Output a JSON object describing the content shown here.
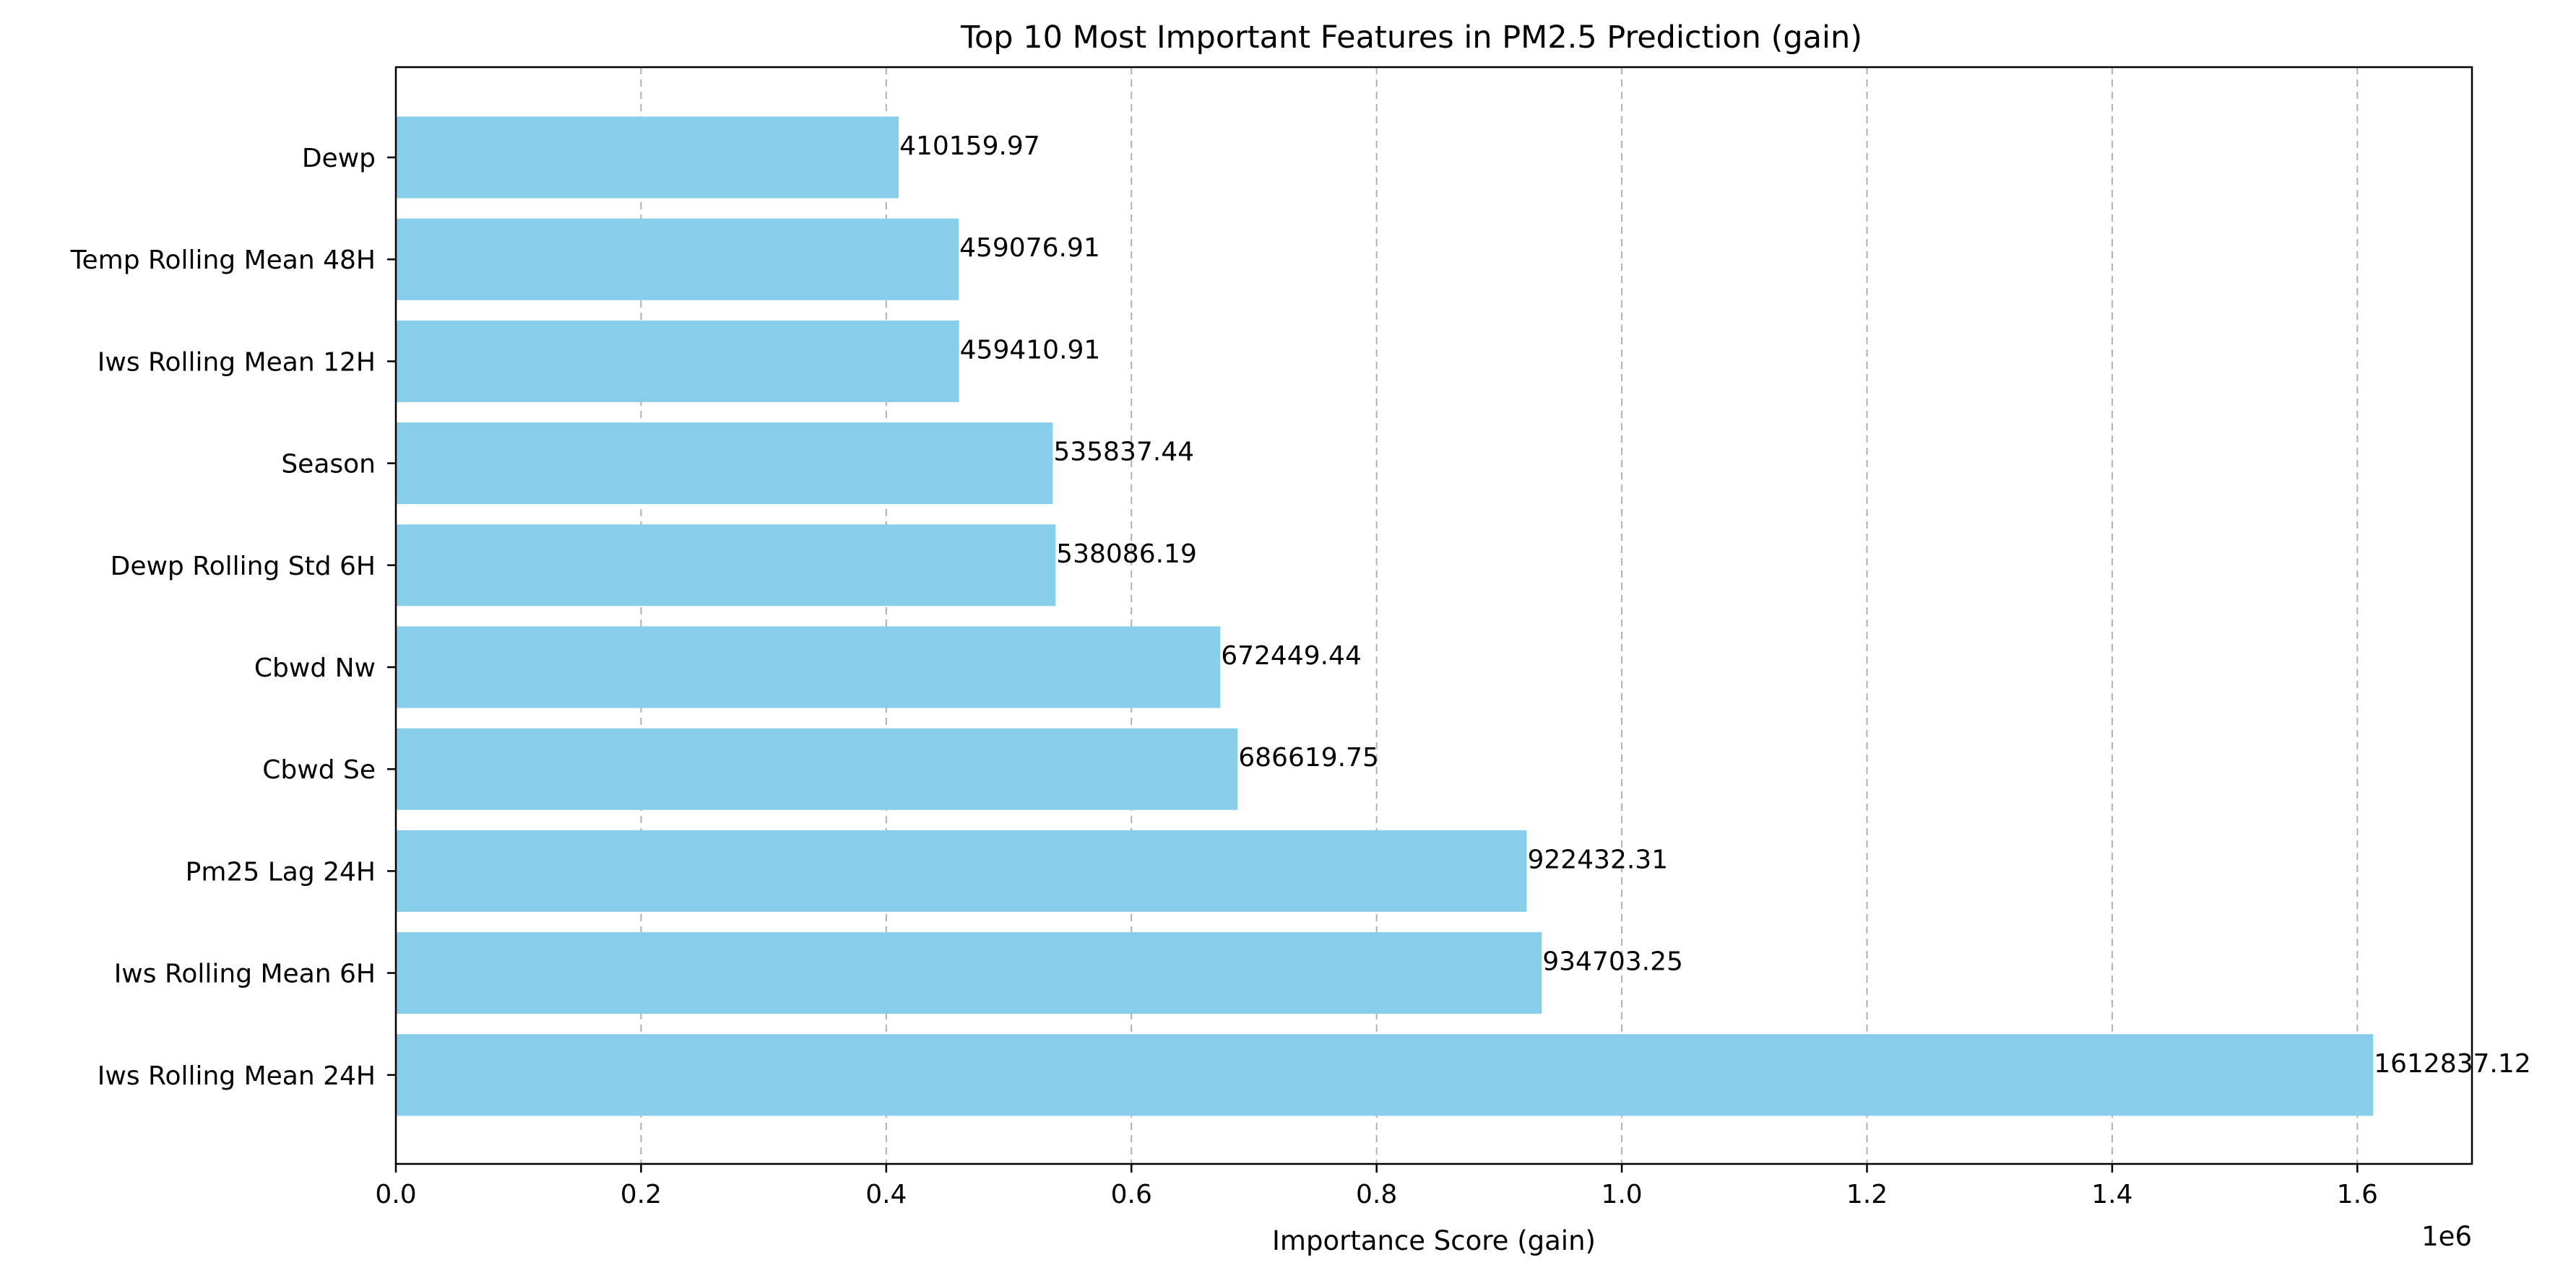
{
  "chart_data": {
    "type": "bar",
    "orientation": "horizontal",
    "title": "Top 10 Most Important Features in PM2.5 Prediction (gain)",
    "xlabel": "Importance Score (gain)",
    "ylabel": "",
    "x_scale_label": "1e6",
    "xlim": [
      0,
      1.6935
    ],
    "x_ticks": [
      0.0,
      0.2,
      0.4,
      0.6,
      0.8,
      1.0,
      1.2,
      1.4,
      1.6
    ],
    "x_tick_labels": [
      "0.0",
      "0.2",
      "0.4",
      "0.6",
      "0.8",
      "1.0",
      "1.2",
      "1.4",
      "1.6"
    ],
    "grid": "x-major dashed",
    "bar_color": "#87CEEB",
    "categories": [
      "Dewp",
      "Temp Rolling Mean 48H",
      "Iws Rolling Mean 12H",
      "Season",
      "Dewp Rolling Std 6H",
      "Cbwd Nw",
      "Cbwd Se",
      "Pm25 Lag 24H",
      "Iws Rolling Mean 6H",
      "Iws Rolling Mean 24H"
    ],
    "values": [
      410159.97,
      459076.91,
      459410.91,
      535837.44,
      538086.19,
      672449.44,
      686619.75,
      922432.31,
      934703.25,
      1612837.12
    ],
    "value_labels": [
      "410159.97",
      "459076.91",
      "459410.91",
      "535837.44",
      "538086.19",
      "672449.44",
      "686619.75",
      "922432.31",
      "934703.25",
      "1612837.12"
    ]
  }
}
